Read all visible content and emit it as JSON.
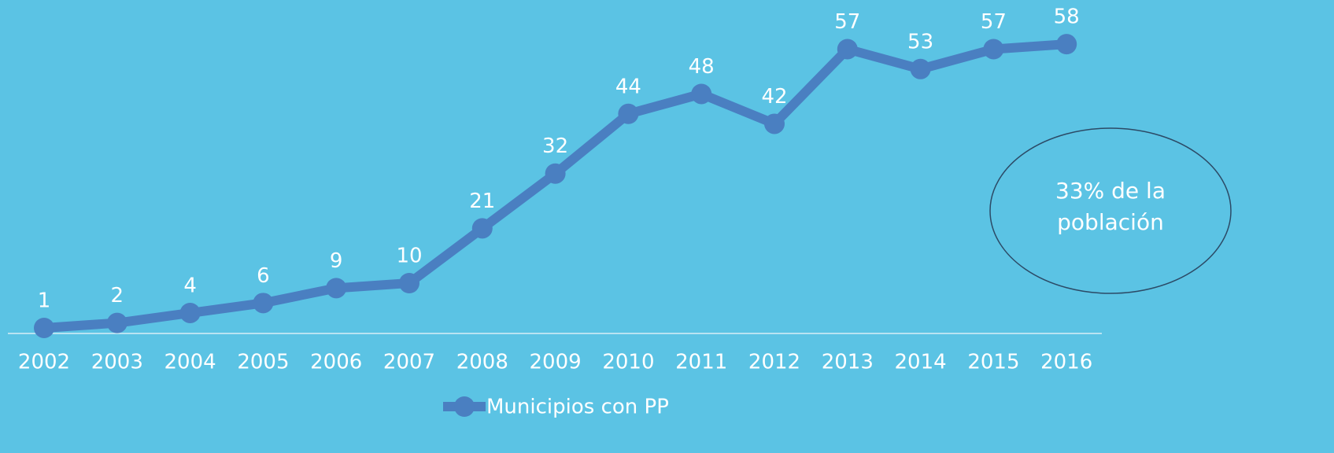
{
  "chart_data": {
    "type": "line",
    "categories": [
      "2002",
      "2003",
      "2004",
      "2005",
      "2006",
      "2007",
      "2008",
      "2009",
      "2010",
      "2011",
      "2012",
      "2013",
      "2014",
      "2015",
      "2016"
    ],
    "series": [
      {
        "name": "Municipios con PP",
        "color": "#4a7fc1",
        "values": [
          1,
          2,
          4,
          6,
          9,
          10,
          21,
          32,
          44,
          48,
          42,
          57,
          53,
          57,
          58
        ]
      }
    ],
    "ylim": [
      0,
      60
    ],
    "annotation": "33% de la población",
    "legend": "bottom"
  }
}
